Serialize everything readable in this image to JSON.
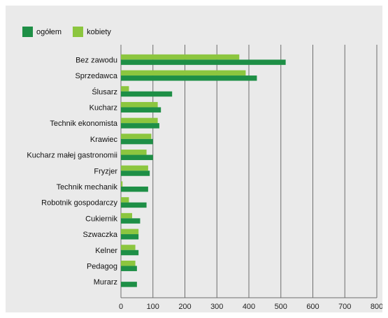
{
  "chart_data": {
    "type": "bar",
    "orientation": "horizontal",
    "categories": [
      "Bez zawodu",
      "Sprzedawca",
      "Ślusarz",
      "Kucharz",
      "Technik ekonomista",
      "Krawiec",
      "Kucharz małej gastronomii",
      "Fryzjer",
      "Technik mechanik",
      "Robotnik gospodarczy",
      "Cukiernik",
      "Szwaczka",
      "Kelner",
      "Pedagog",
      "Murarz"
    ],
    "series": [
      {
        "name": "ogółem",
        "color": "#1e8f46",
        "values": [
          515,
          425,
          160,
          125,
          120,
          100,
          100,
          90,
          85,
          80,
          60,
          55,
          55,
          50,
          50
        ]
      },
      {
        "name": "kobiety",
        "color": "#8cc63f",
        "values": [
          370,
          390,
          25,
          115,
          115,
          95,
          80,
          85,
          5,
          25,
          35,
          55,
          45,
          45,
          0
        ]
      }
    ],
    "x_ticks": [
      "0",
      "100",
      "200",
      "300",
      "400",
      "500",
      "600",
      "700",
      "800"
    ],
    "xlim": [
      0,
      800
    ],
    "grid": true,
    "legend_position": "top-left",
    "title": "",
    "xlabel": "",
    "ylabel": ""
  }
}
